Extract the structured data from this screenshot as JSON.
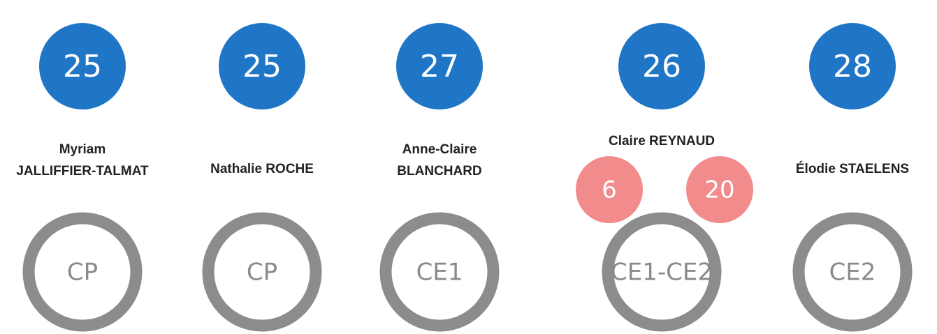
{
  "classes": [
    {
      "count": "25",
      "teacher": [
        "Myriam",
        "JALLIFFIER-TALMAT"
      ],
      "level": "CP"
    },
    {
      "count": "25",
      "teacher": [
        "Nathalie ROCHE"
      ],
      "level": "CP"
    },
    {
      "count": "27",
      "teacher": [
        "Anne-Claire",
        "BLANCHARD"
      ],
      "level": "CE1"
    },
    {
      "count": "26",
      "teacher": [
        "Claire REYNAUD"
      ],
      "split": [
        "6",
        "20"
      ],
      "level": "CE1-CE2"
    },
    {
      "count": "28",
      "teacher": [
        "Élodie STAELENS"
      ],
      "level": "CE2"
    }
  ]
}
